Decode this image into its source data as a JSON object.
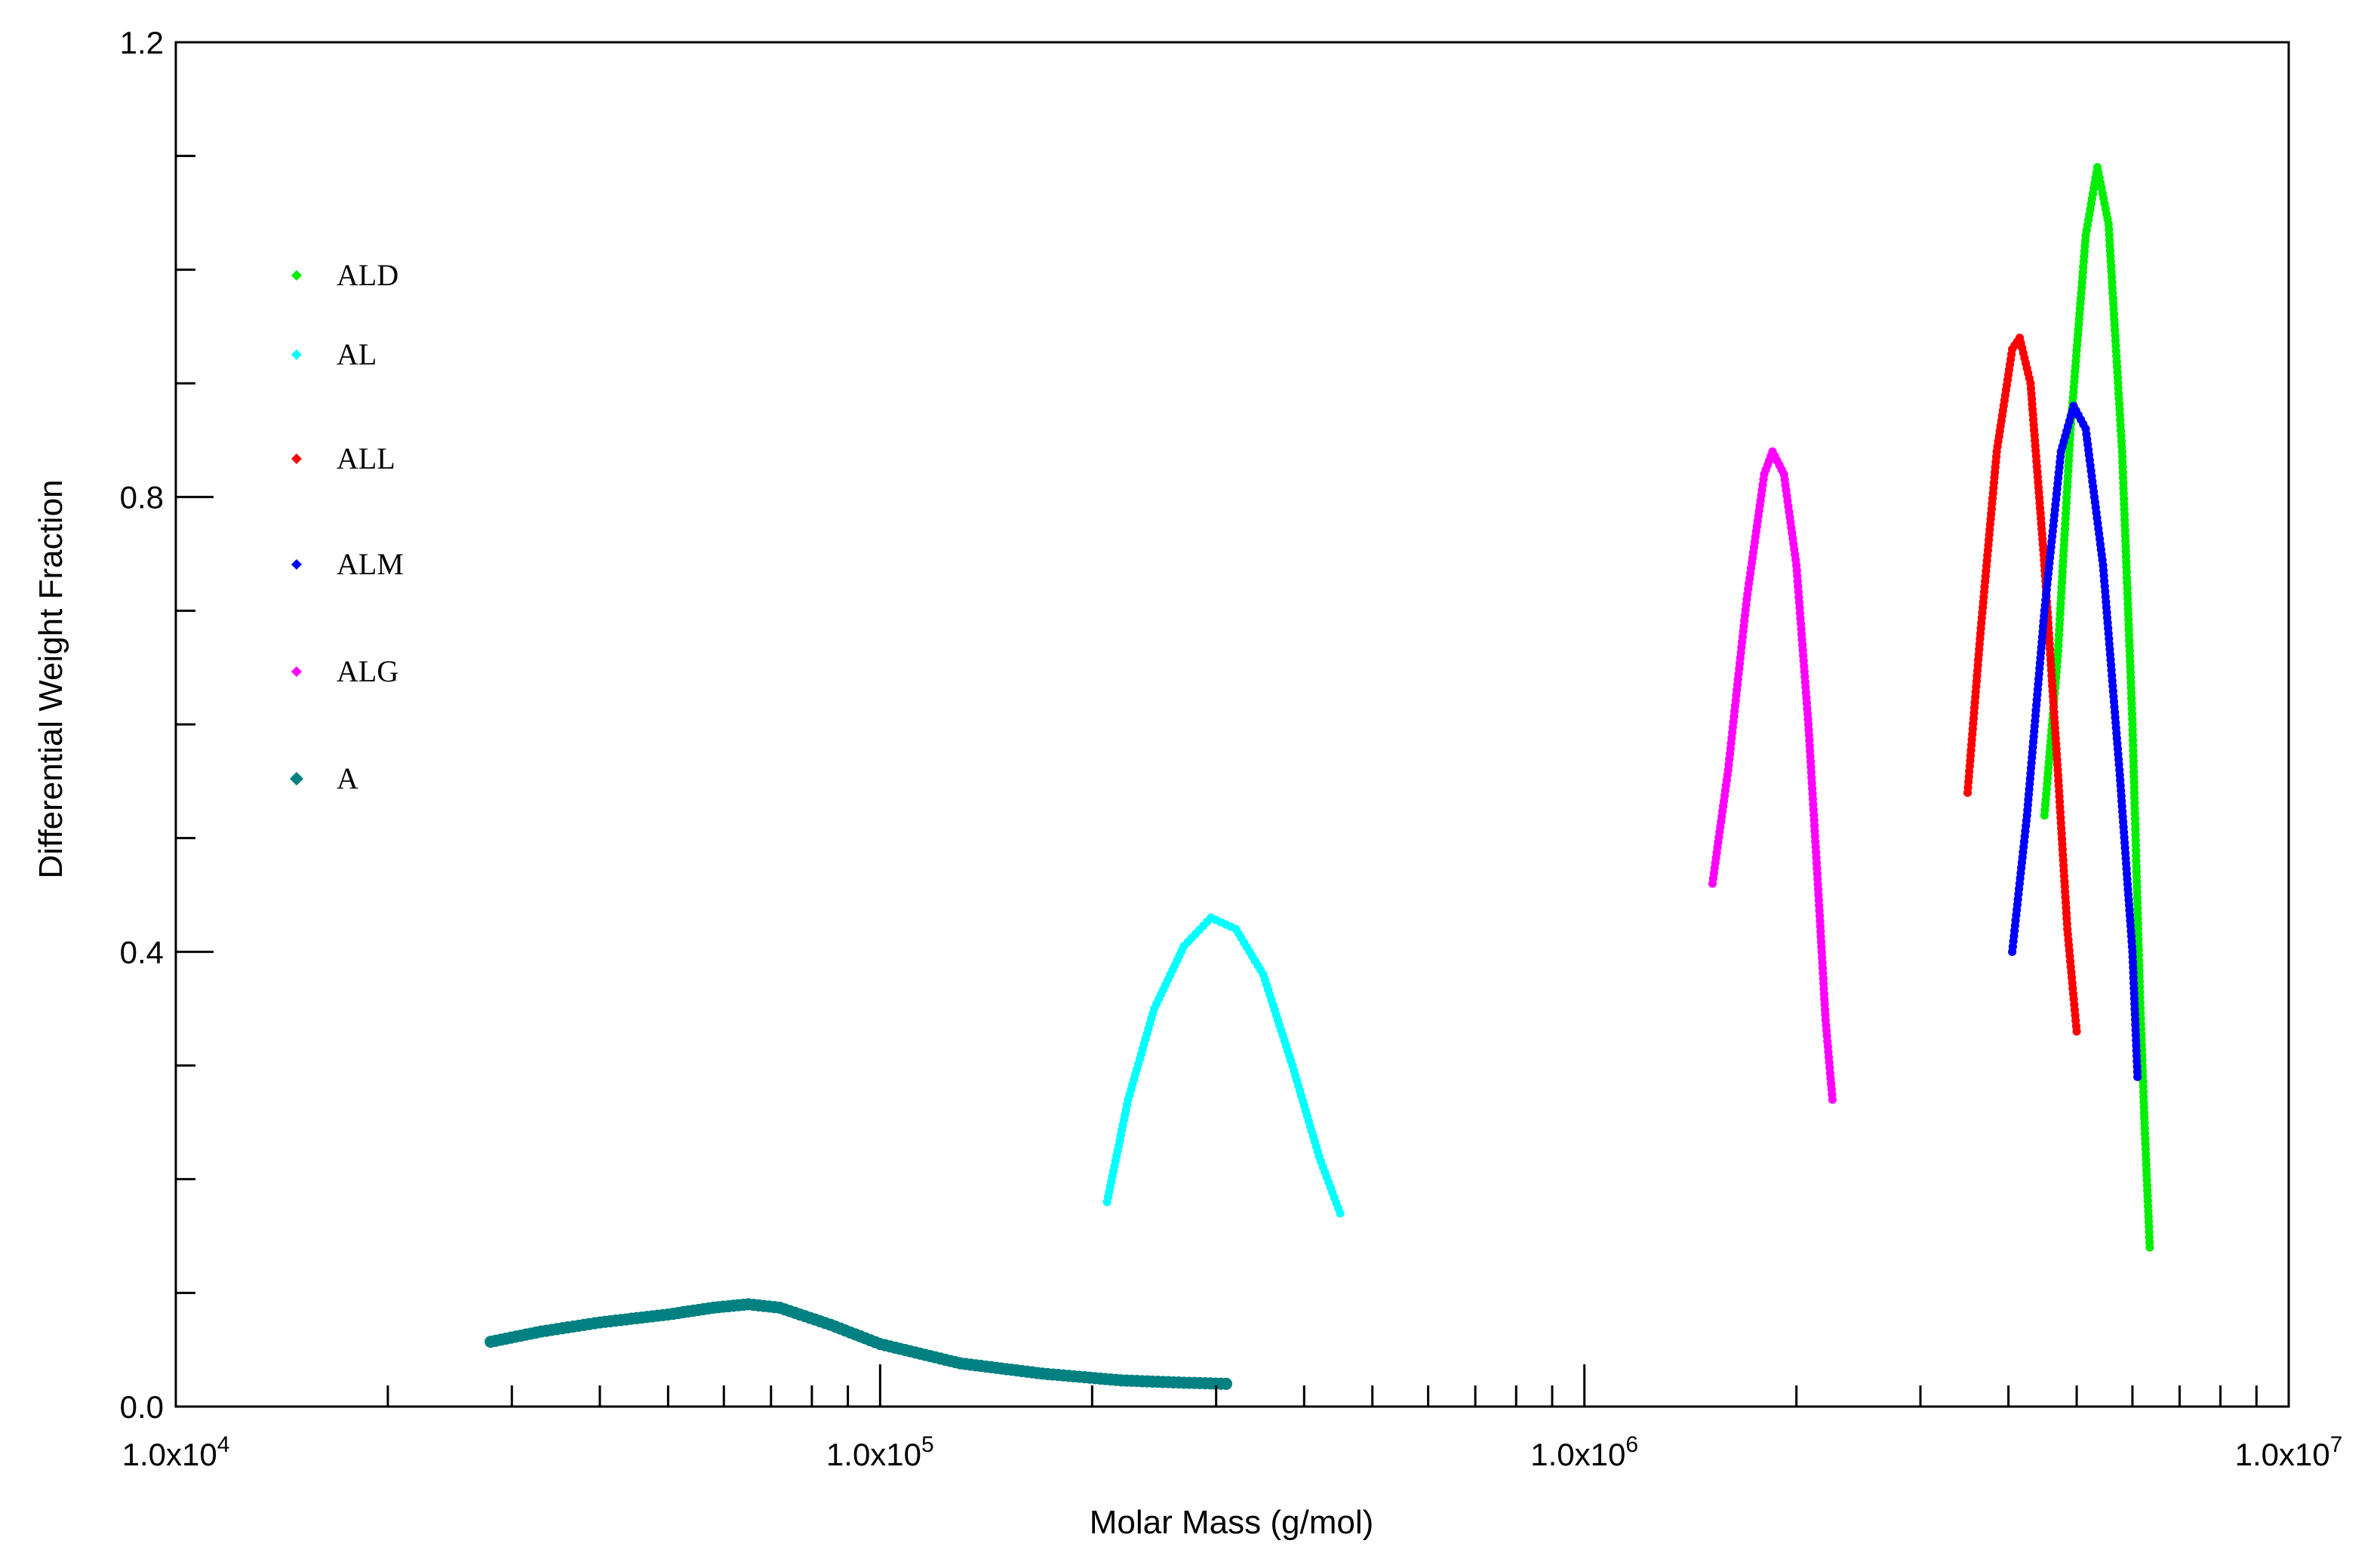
{
  "chart_data": {
    "type": "scatter",
    "xlabel": "Molar Mass (g/mol)",
    "ylabel": "Differential Weight Fraction",
    "x_scale": "log",
    "xlim": [
      10000,
      10000000
    ],
    "ylim": [
      0,
      1.2
    ],
    "x_ticks": [
      {
        "value": 10000,
        "label": "1.0x10",
        "exp": "4"
      },
      {
        "value": 100000,
        "label": "1.0x10",
        "exp": "5"
      },
      {
        "value": 1000000,
        "label": "1.0x10",
        "exp": "6"
      },
      {
        "value": 10000000,
        "label": "1.0x10",
        "exp": "7"
      }
    ],
    "y_ticks": [
      {
        "value": 0.0,
        "label": "0.0"
      },
      {
        "value": 0.4,
        "label": "0.4"
      },
      {
        "value": 0.8,
        "label": "0.8"
      },
      {
        "value": 1.2,
        "label": "1.2"
      }
    ],
    "grid": false,
    "legend_position": "left",
    "series": [
      {
        "name": "ALD",
        "color": "#00ee00",
        "points": [
          [
            4500000,
            0.52
          ],
          [
            4700000,
            0.66
          ],
          [
            4900000,
            0.86
          ],
          [
            5150000,
            1.03
          ],
          [
            5350000,
            1.09
          ],
          [
            5550000,
            1.04
          ],
          [
            5800000,
            0.84
          ],
          [
            6000000,
            0.6
          ],
          [
            6150000,
            0.36
          ],
          [
            6250000,
            0.24
          ],
          [
            6350000,
            0.14
          ]
        ]
      },
      {
        "name": "AL",
        "color": "#00ffff",
        "points": [
          [
            210000,
            0.18
          ],
          [
            225000,
            0.27
          ],
          [
            245000,
            0.35
          ],
          [
            270000,
            0.405
          ],
          [
            295000,
            0.43
          ],
          [
            320000,
            0.42
          ],
          [
            350000,
            0.38
          ],
          [
            385000,
            0.3
          ],
          [
            420000,
            0.22
          ],
          [
            450000,
            0.17
          ]
        ]
      },
      {
        "name": "ALL",
        "color": "#ff0000",
        "points": [
          [
            3500000,
            0.54
          ],
          [
            3650000,
            0.68
          ],
          [
            3850000,
            0.84
          ],
          [
            4050000,
            0.93
          ],
          [
            4150000,
            0.94
          ],
          [
            4300000,
            0.9
          ],
          [
            4500000,
            0.74
          ],
          [
            4700000,
            0.56
          ],
          [
            4850000,
            0.42
          ],
          [
            5000000,
            0.33
          ]
        ]
      },
      {
        "name": "ALM",
        "color": "#0000ff",
        "points": [
          [
            4050000,
            0.4
          ],
          [
            4250000,
            0.52
          ],
          [
            4500000,
            0.7
          ],
          [
            4750000,
            0.84
          ],
          [
            4950000,
            0.88
          ],
          [
            5150000,
            0.86
          ],
          [
            5450000,
            0.74
          ],
          [
            5750000,
            0.56
          ],
          [
            6000000,
            0.4
          ],
          [
            6100000,
            0.29
          ]
        ]
      },
      {
        "name": "ALG",
        "color": "#ff00ff",
        "points": [
          [
            1520000,
            0.46
          ],
          [
            1600000,
            0.56
          ],
          [
            1700000,
            0.71
          ],
          [
            1800000,
            0.82
          ],
          [
            1850000,
            0.84
          ],
          [
            1920000,
            0.82
          ],
          [
            2000000,
            0.74
          ],
          [
            2080000,
            0.6
          ],
          [
            2150000,
            0.45
          ],
          [
            2200000,
            0.34
          ],
          [
            2250000,
            0.27
          ]
        ]
      },
      {
        "name": "A",
        "color": "#008080",
        "points": [
          [
            28000,
            0.057
          ],
          [
            33000,
            0.066
          ],
          [
            40000,
            0.074
          ],
          [
            50000,
            0.081
          ],
          [
            58000,
            0.087
          ],
          [
            65000,
            0.09
          ],
          [
            72000,
            0.087
          ],
          [
            85000,
            0.072
          ],
          [
            100000,
            0.055
          ],
          [
            130000,
            0.038
          ],
          [
            170000,
            0.029
          ],
          [
            220000,
            0.023
          ],
          [
            270000,
            0.021
          ],
          [
            310000,
            0.02
          ]
        ]
      }
    ]
  }
}
